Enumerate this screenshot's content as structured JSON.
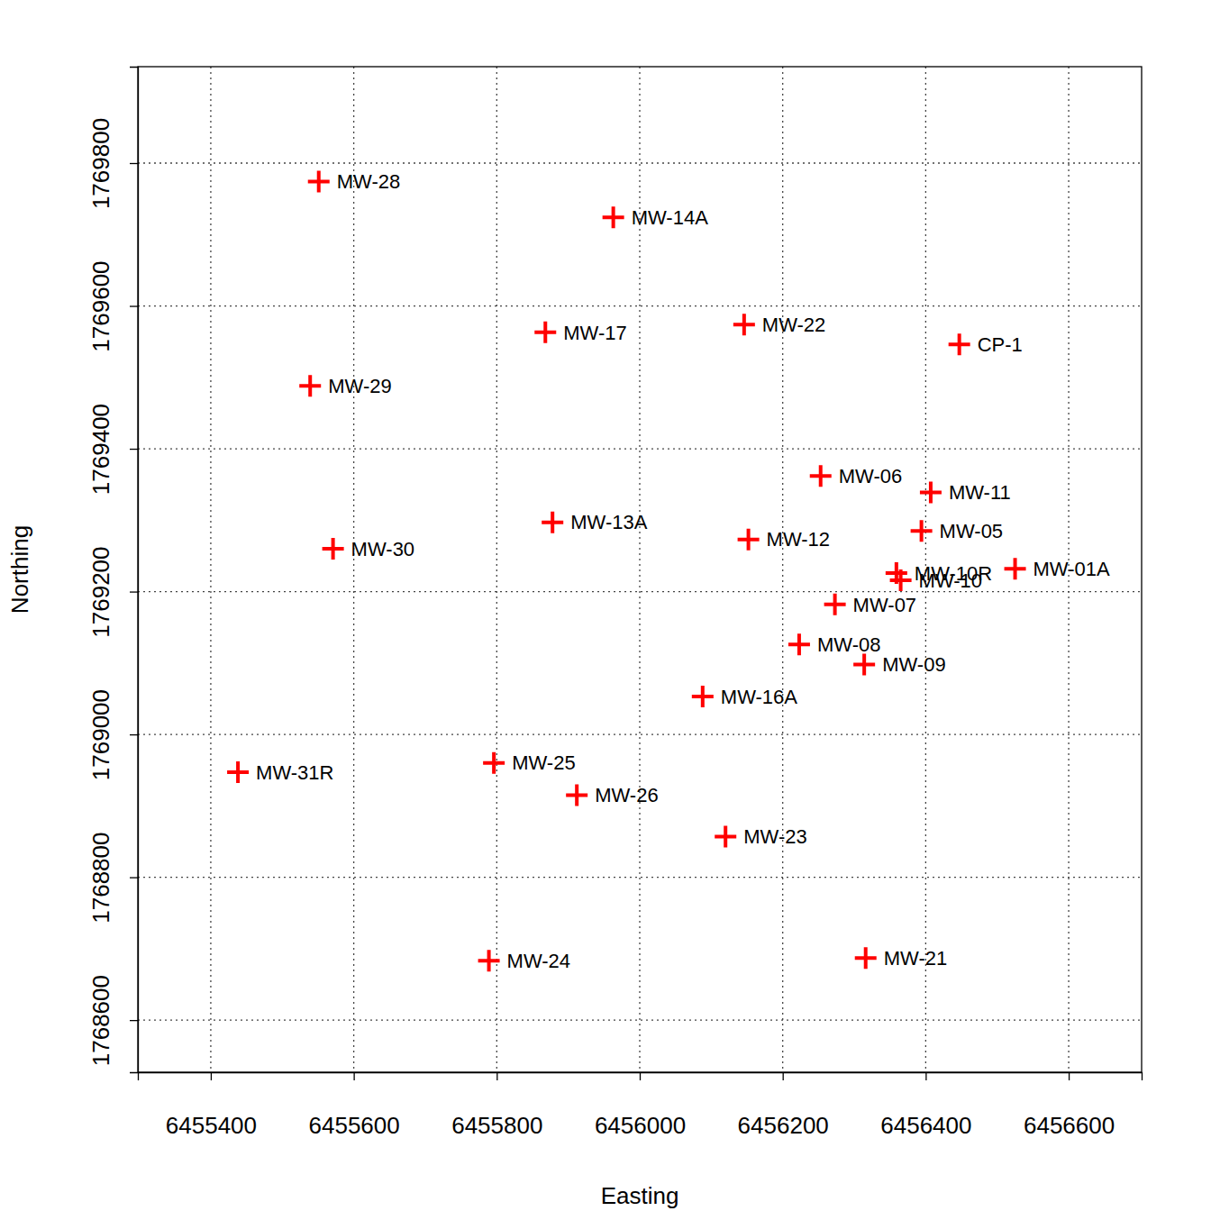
{
  "chart_data": {
    "type": "scatter",
    "x_label": "Easting",
    "y_label": "Northing",
    "labels": [
      "MW-28",
      "MW-14A",
      "MW-17",
      "MW-22",
      "CP-1",
      "MW-29",
      "MW-06",
      "MW-11",
      "MW-13A",
      "MW-05",
      "MW-30",
      "MW-12",
      "MW-10R",
      "MW-10",
      "MW-01A",
      "MW-07",
      "MW-08",
      "MW-09",
      "MW-16A",
      "MW-31R",
      "MW-25",
      "MW-26",
      "MW-23",
      "MW-24",
      "MW-21"
    ],
    "x": [
      6455551,
      6455963,
      6455868,
      6456146,
      6456447,
      6455539,
      6456253,
      6456407,
      6455878,
      6456394,
      6455571,
      6456152,
      6456359,
      6456365,
      6456525,
      6456273,
      6456223,
      6456314,
      6456088,
      6455438,
      6455796,
      6455912,
      6456120,
      6455789,
      6456316
    ],
    "y": [
      1769774,
      1769724,
      1769563,
      1769574,
      1769546,
      1769488,
      1769362,
      1769339,
      1769297,
      1769285,
      1769260,
      1769273,
      1769226,
      1769216,
      1769232,
      1769182,
      1769126,
      1769098,
      1769053,
      1768947,
      1768960,
      1768915,
      1768857,
      1768683,
      1768687
    ],
    "color": "#ff0000",
    "marker": "plus",
    "xlim": [
      6455298,
      6456702
    ],
    "ylim": [
      1768527,
      1769935
    ],
    "xticks": [
      6455400,
      6455600,
      6455800,
      6456000,
      6456200,
      6456400,
      6456600
    ],
    "yticks": [
      1768600,
      1768800,
      1769000,
      1769200,
      1769400,
      1769600,
      1769800
    ],
    "grid": true
  }
}
